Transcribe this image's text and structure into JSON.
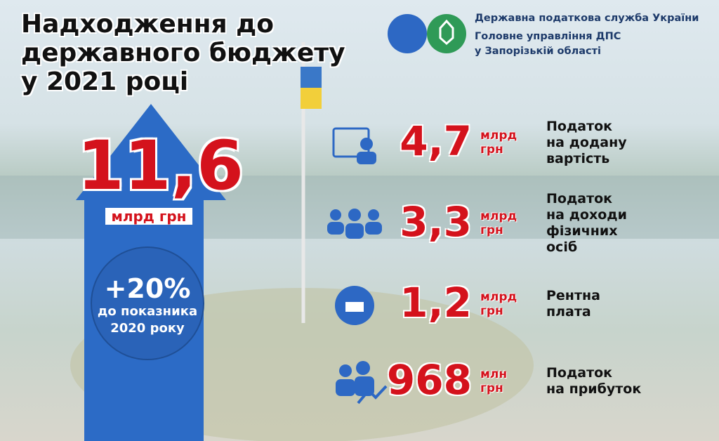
{
  "header": {
    "title": [
      "Надходження до",
      "державного бюджету",
      "у 2021 році"
    ]
  },
  "organization": [
    "Державна податкова служба України",
    "Головне управління ДПС",
    "у Запорізькій області"
  ],
  "total": {
    "value": "11,6",
    "unit": "млрд грн",
    "growth": "+20%",
    "growth_note": [
      "до показника",
      "2020 року"
    ]
  },
  "items": [
    {
      "value": "4,7",
      "unit": [
        "млрд",
        "грн"
      ],
      "label": [
        "Податок",
        "на додану",
        "вартість"
      ]
    },
    {
      "value": "3,3",
      "unit": [
        "млрд",
        "грн"
      ],
      "label": [
        "Податок",
        "на доходи",
        "фізичних",
        "осіб"
      ]
    },
    {
      "value": "1,2",
      "unit": [
        "млрд",
        "грн"
      ],
      "label": [
        "Рентна",
        "плата"
      ]
    },
    {
      "value": "968",
      "unit": [
        "млн",
        "грн"
      ],
      "label": [
        "Податок",
        "на прибуток"
      ]
    }
  ]
}
